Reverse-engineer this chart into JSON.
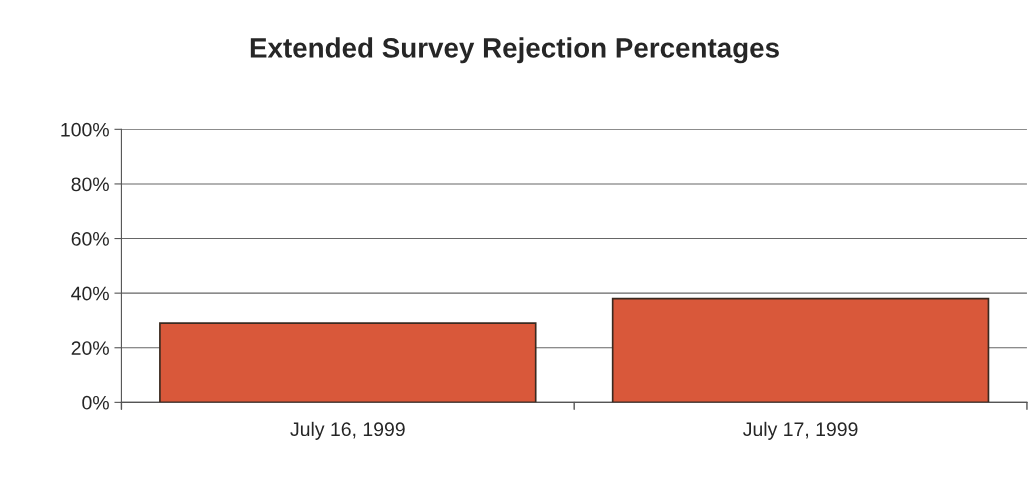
{
  "chart_data": {
    "type": "bar",
    "title": "Extended Survey Rejection Percentages",
    "categories": [
      "July 16, 1999",
      "July 17, 1999"
    ],
    "values": [
      29,
      38
    ],
    "color": "#d9583a",
    "ylim": [
      0,
      100
    ],
    "yticks": [
      {
        "value": 0,
        "label": "0%"
      },
      {
        "value": 20,
        "label": "20%"
      },
      {
        "value": 40,
        "label": "40%"
      },
      {
        "value": 60,
        "label": "60%"
      },
      {
        "value": 80,
        "label": "80%"
      },
      {
        "value": 100,
        "label": "100%"
      }
    ],
    "grid": "y"
  }
}
